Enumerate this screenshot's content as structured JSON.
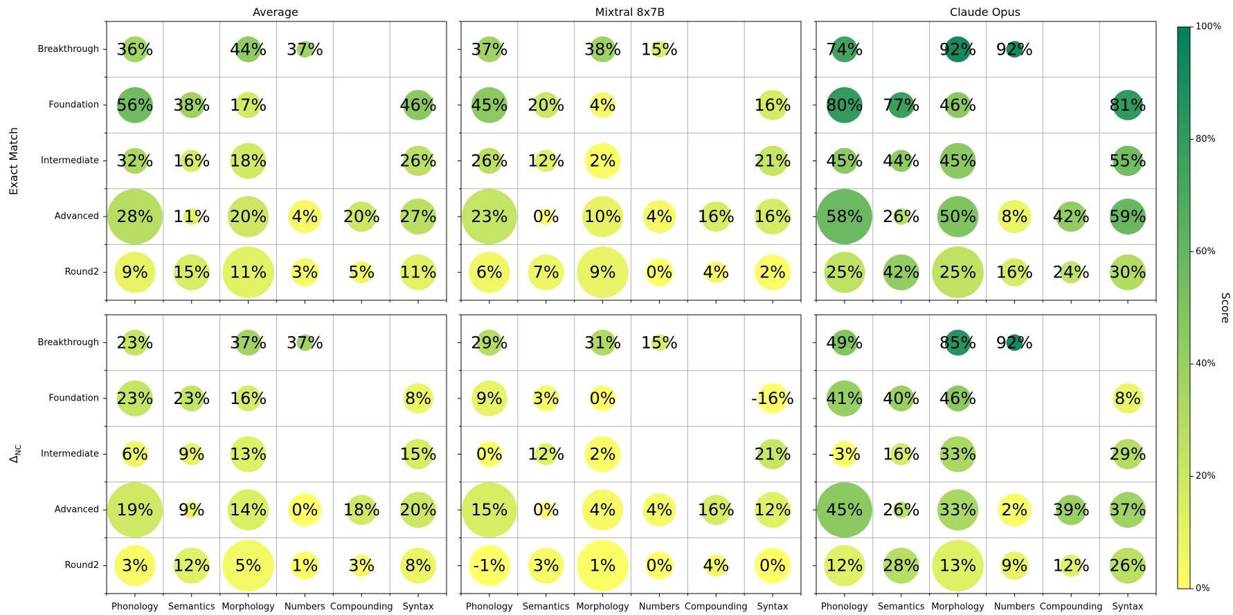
{
  "chart_data": {
    "type": "bubble-matrix",
    "panel_titles": [
      "Average",
      "Mixtral 8x7B",
      "Claude Opus"
    ],
    "row_metric_labels": [
      "Exact Match",
      "Δ",
      "NC"
    ],
    "categories_x": [
      "Phonology",
      "Semantics",
      "Morphology",
      "Numbers",
      "Compounding",
      "Syntax"
    ],
    "categories_y": [
      "Breakthrough",
      "Foundation",
      "Intermediate",
      "Advanced",
      "Round2"
    ],
    "colorbar": {
      "label": "Score",
      "min": 0,
      "max": 100,
      "ticks": [
        "0%",
        "20%",
        "40%",
        "60%",
        "80%",
        "100%"
      ],
      "color_low": "#ffff66",
      "color_mid": "#7fc460",
      "color_high": "#007f5f"
    },
    "relative_bubble_area": [
      [
        0.22,
        0,
        0.22,
        0.09,
        0,
        0
      ],
      [
        0.42,
        0.22,
        0.22,
        0,
        0,
        0.3
      ],
      [
        0.22,
        0.16,
        0.42,
        0,
        0,
        0.3
      ],
      [
        1.0,
        0.09,
        0.55,
        0.36,
        0.3,
        0.42
      ],
      [
        0.55,
        0.42,
        0.87,
        0.26,
        0.16,
        0.42
      ]
    ],
    "panels": [
      {
        "model": "Average",
        "metric": "Exact Match",
        "values": [
          [
            36,
            null,
            44,
            37,
            null,
            null
          ],
          [
            56,
            38,
            17,
            null,
            null,
            46
          ],
          [
            32,
            16,
            18,
            null,
            null,
            26
          ],
          [
            28,
            11,
            20,
            4,
            20,
            27
          ],
          [
            9,
            15,
            11,
            3,
            5,
            11
          ]
        ],
        "labels": [
          [
            "36%",
            "",
            "44%",
            "37%",
            "",
            ""
          ],
          [
            "56%",
            "38%",
            "17%",
            "",
            "",
            "46%"
          ],
          [
            "32%",
            "16%",
            "18%",
            "",
            "",
            "26%"
          ],
          [
            "28%",
            "11%",
            "20%",
            "4%",
            "20%",
            "27%"
          ],
          [
            "9%",
            "15%",
            "11%",
            "3%",
            "5%",
            "11%"
          ]
        ]
      },
      {
        "model": "Mixtral 8x7B",
        "metric": "Exact Match",
        "values": [
          [
            37,
            null,
            38,
            15,
            null,
            null
          ],
          [
            45,
            20,
            4,
            null,
            null,
            16
          ],
          [
            26,
            12,
            2,
            null,
            null,
            21
          ],
          [
            23,
            0,
            10,
            4,
            16,
            16
          ],
          [
            6,
            7,
            9,
            0,
            4,
            2
          ]
        ],
        "labels": [
          [
            "37%",
            "",
            "38%",
            "15%",
            "",
            ""
          ],
          [
            "45%",
            "20%",
            "4%",
            "",
            "",
            "16%"
          ],
          [
            "26%",
            "12%",
            "2%",
            "",
            "",
            "21%"
          ],
          [
            "23%",
            "0%",
            "10%",
            "4%",
            "16%",
            "16%"
          ],
          [
            "6%",
            "7%",
            "9%",
            "0%",
            "4%",
            "2%"
          ]
        ]
      },
      {
        "model": "Claude Opus",
        "metric": "Exact Match",
        "values": [
          [
            74,
            null,
            92,
            92,
            null,
            null
          ],
          [
            80,
            77,
            46,
            null,
            null,
            81
          ],
          [
            45,
            44,
            45,
            null,
            null,
            55
          ],
          [
            58,
            26,
            50,
            8,
            42,
            59
          ],
          [
            25,
            42,
            25,
            16,
            24,
            30
          ]
        ],
        "labels": [
          [
            "74%",
            "",
            "92%",
            "92%",
            "",
            ""
          ],
          [
            "80%",
            "77%",
            "46%",
            "",
            "",
            "81%"
          ],
          [
            "45%",
            "44%",
            "45%",
            "",
            "",
            "55%"
          ],
          [
            "58%",
            "26%",
            "50%",
            "8%",
            "42%",
            "59%"
          ],
          [
            "25%",
            "42%",
            "25%",
            "16%",
            "24%",
            "30%"
          ]
        ]
      },
      {
        "model": "Average",
        "metric": "Δ NC",
        "values": [
          [
            23,
            null,
            37,
            37,
            null,
            null
          ],
          [
            23,
            23,
            16,
            null,
            null,
            8
          ],
          [
            6,
            9,
            13,
            null,
            null,
            15
          ],
          [
            19,
            9,
            14,
            0,
            18,
            20
          ],
          [
            3,
            12,
            5,
            1,
            3,
            8
          ]
        ],
        "labels": [
          [
            "23%",
            "",
            "37%",
            "37%",
            "",
            ""
          ],
          [
            "23%",
            "23%",
            "16%",
            "",
            "",
            "8%"
          ],
          [
            "6%",
            "9%",
            "13%",
            "",
            "",
            "15%"
          ],
          [
            "19%",
            "9%",
            "14%",
            "0%",
            "18%",
            "20%"
          ],
          [
            "3%",
            "12%",
            "5%",
            "1%",
            "3%",
            "8%"
          ]
        ]
      },
      {
        "model": "Mixtral 8x7B",
        "metric": "Δ NC",
        "values": [
          [
            29,
            null,
            31,
            15,
            null,
            null
          ],
          [
            9,
            3,
            0,
            null,
            null,
            -16
          ],
          [
            0,
            12,
            2,
            null,
            null,
            21
          ],
          [
            15,
            0,
            4,
            4,
            16,
            12
          ],
          [
            -1,
            3,
            1,
            0,
            4,
            0
          ]
        ],
        "labels": [
          [
            "29%",
            "",
            "31%",
            "15%",
            "",
            ""
          ],
          [
            "9%",
            "3%",
            "0%",
            "",
            "",
            "-16%"
          ],
          [
            "0%",
            "12%",
            "2%",
            "",
            "",
            "21%"
          ],
          [
            "15%",
            "0%",
            "4%",
            "4%",
            "16%",
            "12%"
          ],
          [
            "-1%",
            "3%",
            "1%",
            "0%",
            "4%",
            "0%"
          ]
        ]
      },
      {
        "model": "Claude Opus",
        "metric": "Δ NC",
        "values": [
          [
            49,
            null,
            85,
            92,
            null,
            null
          ],
          [
            41,
            40,
            46,
            null,
            null,
            8
          ],
          [
            -3,
            16,
            33,
            null,
            null,
            29
          ],
          [
            45,
            26,
            33,
            2,
            39,
            37
          ],
          [
            12,
            28,
            13,
            9,
            12,
            26
          ]
        ],
        "labels": [
          [
            "49%",
            "",
            "85%",
            "92%",
            "",
            ""
          ],
          [
            "41%",
            "40%",
            "46%",
            "",
            "",
            "8%"
          ],
          [
            "-3%",
            "16%",
            "33%",
            "",
            "",
            "29%"
          ],
          [
            "45%",
            "26%",
            "33%",
            "2%",
            "39%",
            "37%"
          ],
          [
            "12%",
            "28%",
            "13%",
            "9%",
            "12%",
            "26%"
          ]
        ]
      }
    ]
  }
}
